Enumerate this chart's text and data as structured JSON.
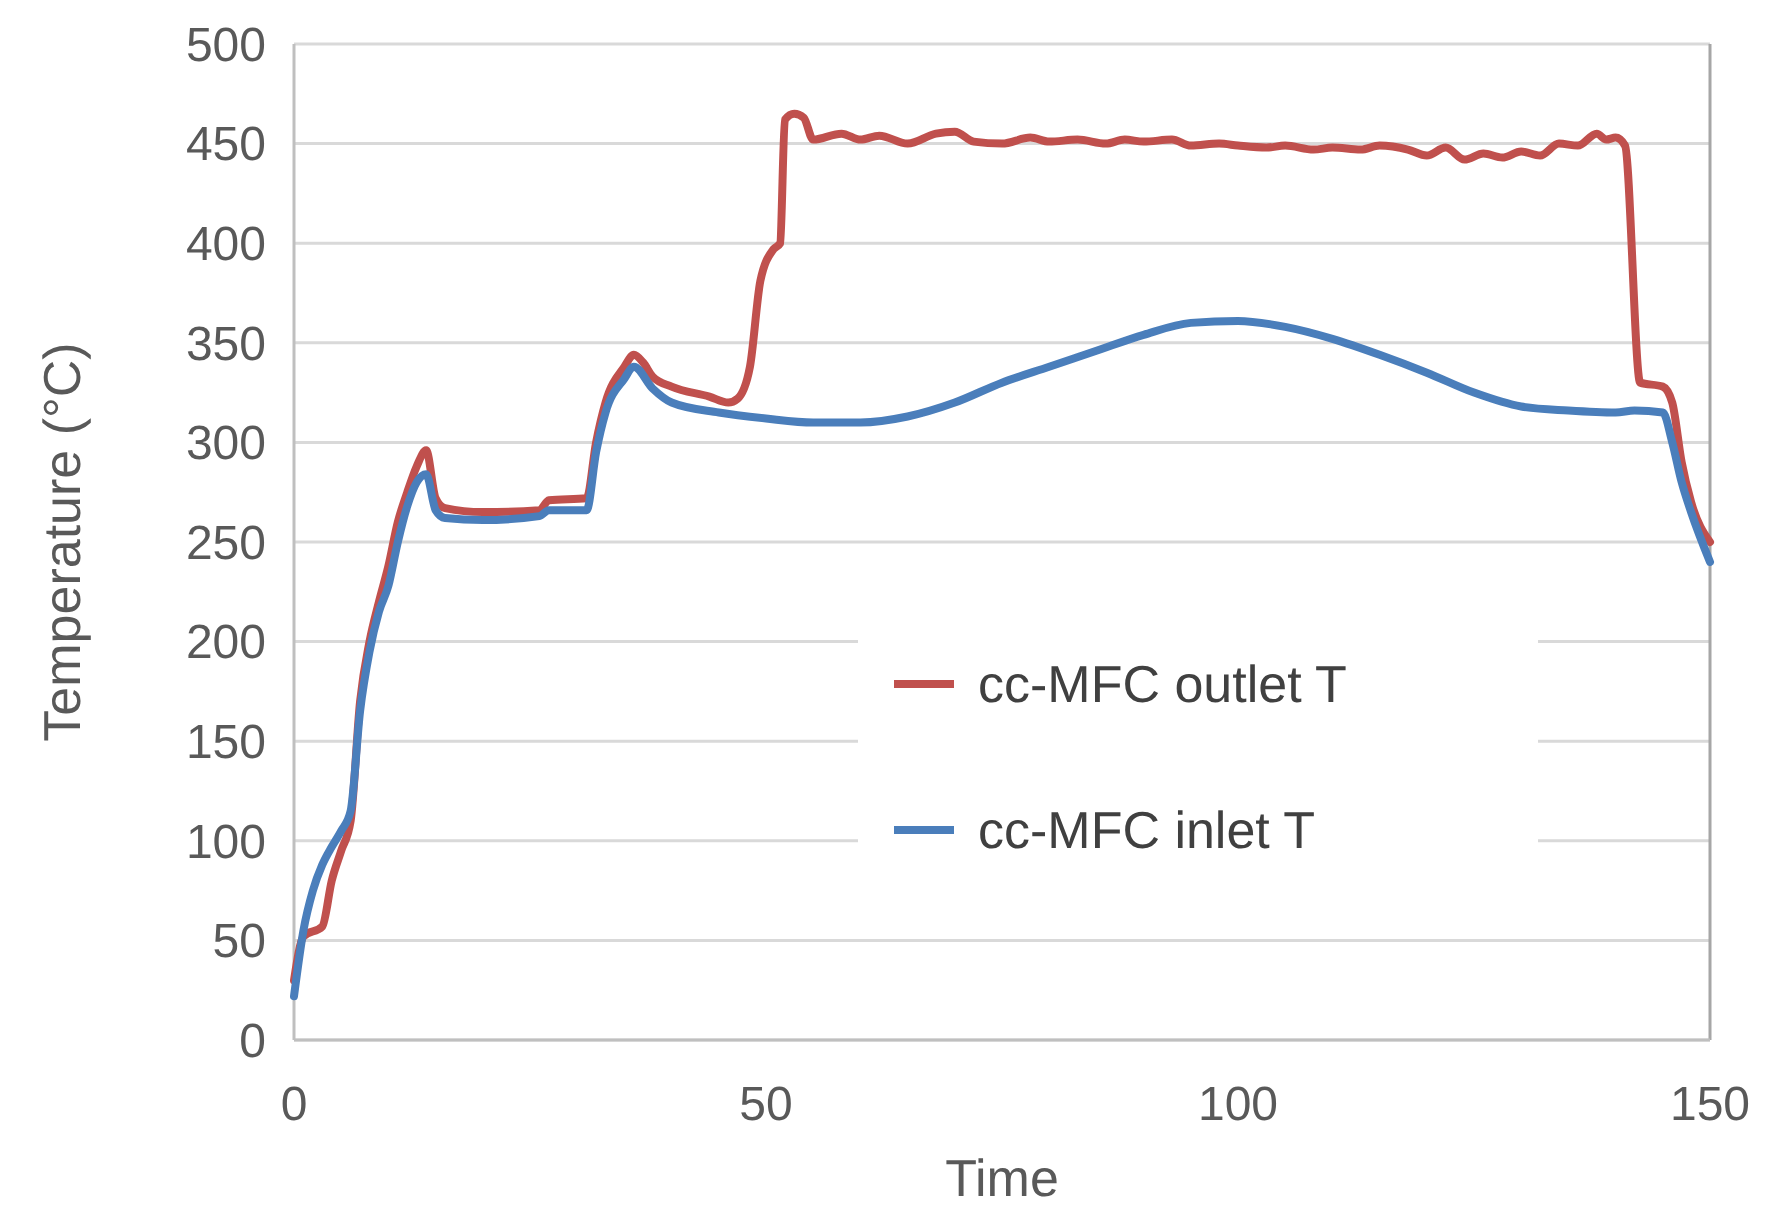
{
  "chart_data": {
    "type": "line",
    "xlabel": "Time",
    "ylabel": "Temperature (°C)",
    "xlim": [
      0,
      150
    ],
    "xticks": [
      0,
      50,
      100,
      150
    ],
    "ylim": [
      0,
      500
    ],
    "yticks": [
      0,
      50,
      100,
      150,
      200,
      250,
      300,
      350,
      400,
      450,
      500
    ],
    "grid": "y",
    "legend": "right",
    "marker": "none",
    "line_style": "solid",
    "series": [
      {
        "name": "cc-MFC outlet T",
        "color": "#c0504d",
        "x": [
          0,
          1,
          3,
          4,
          5,
          6,
          7,
          8,
          9,
          10,
          11,
          12,
          13,
          14,
          15,
          16,
          20,
          26,
          27,
          31,
          32,
          33,
          35,
          36,
          37,
          38,
          40,
          44,
          46,
          47,
          48.3,
          49.4,
          50.8,
          51.5,
          52,
          53,
          54,
          55,
          58,
          60,
          62,
          65,
          68,
          70,
          72,
          75,
          78,
          80,
          83,
          86,
          88,
          90,
          93,
          95,
          98,
          100,
          103,
          105,
          108,
          110,
          113,
          115,
          118,
          120,
          122,
          124,
          126,
          128,
          130,
          132,
          134,
          136,
          138,
          139,
          140,
          141,
          142.6,
          145,
          146,
          147,
          148,
          150
        ],
        "values": [
          30,
          52,
          57,
          80,
          95,
          110,
          170,
          200,
          220,
          238,
          260,
          275,
          288,
          296,
          272,
          267,
          265,
          266,
          271,
          272,
          300,
          320,
          338,
          344,
          340,
          333,
          328,
          323,
          320,
          322,
          338,
          381,
          397,
          400,
          462,
          465,
          463,
          452,
          455,
          452,
          454,
          450,
          455,
          456,
          451,
          450,
          453,
          451,
          452,
          450,
          452,
          451,
          452,
          449,
          450,
          449,
          448,
          449,
          447,
          448,
          447,
          449,
          447,
          444,
          448,
          442,
          445,
          443,
          446,
          444,
          450,
          449,
          455,
          452,
          453,
          449,
          330,
          328,
          320,
          290,
          270,
          250
        ]
      },
      {
        "name": "cc-MFC inlet T",
        "color": "#4a7ebb",
        "x": [
          0,
          1,
          2,
          3,
          4,
          5,
          6,
          7,
          8,
          9,
          10,
          11,
          12,
          13,
          14,
          15,
          16,
          20,
          26,
          27,
          31,
          32,
          33,
          35,
          36,
          38,
          40,
          45,
          50,
          55,
          60,
          65,
          70,
          75,
          80,
          85,
          90,
          95,
          100,
          105,
          110,
          115,
          120,
          125,
          130,
          135,
          140,
          142,
          145,
          146,
          147,
          148,
          150
        ],
        "values": [
          22,
          55,
          75,
          88,
          97,
          105,
          115,
          165,
          195,
          215,
          228,
          250,
          268,
          280,
          284,
          266,
          262,
          261,
          263,
          266,
          266,
          295,
          315,
          332,
          338,
          327,
          320,
          315,
          312,
          310,
          310,
          313,
          320,
          330,
          338,
          346,
          354,
          360,
          361,
          358,
          352,
          344,
          335,
          325,
          318,
          316,
          315,
          316,
          315,
          300,
          280,
          265,
          240
        ]
      }
    ]
  }
}
